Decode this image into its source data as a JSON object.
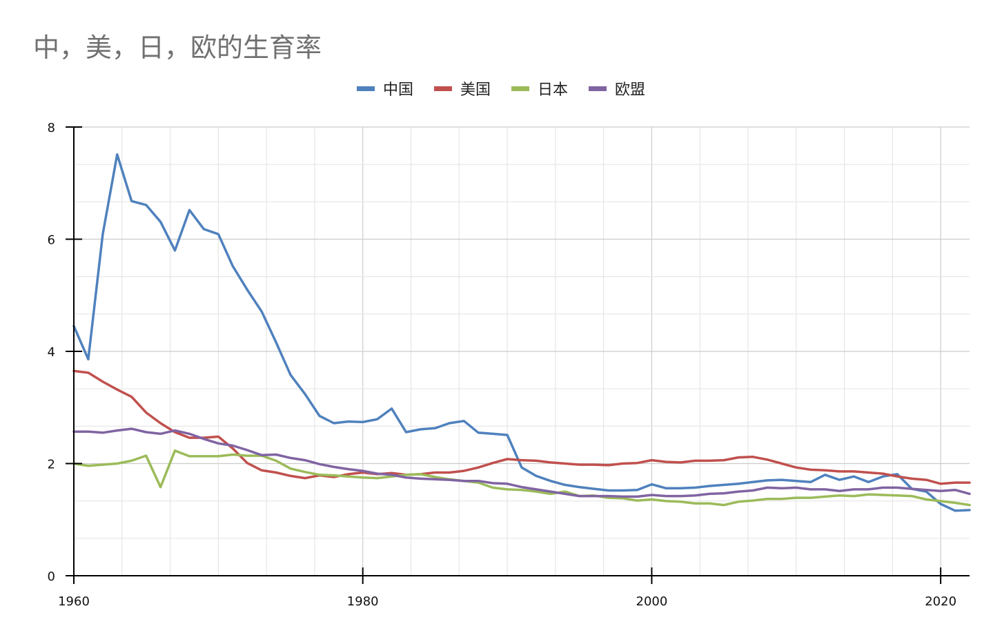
{
  "chart_data": {
    "type": "line",
    "title": "中，美，日，欧的生育率",
    "xlabel": "",
    "ylabel": "",
    "xlim": [
      1960,
      2022
    ],
    "ylim": [
      0,
      8
    ],
    "x_ticks": [
      1960,
      1980,
      2000,
      2020
    ],
    "y_ticks": [
      0,
      2,
      4,
      6,
      8
    ],
    "grid": true,
    "legend_position": "top",
    "x": [
      1960,
      1961,
      1962,
      1963,
      1964,
      1965,
      1966,
      1967,
      1968,
      1969,
      1970,
      1971,
      1972,
      1973,
      1974,
      1975,
      1976,
      1977,
      1978,
      1979,
      1980,
      1981,
      1982,
      1983,
      1984,
      1985,
      1986,
      1987,
      1988,
      1989,
      1990,
      1991,
      1992,
      1993,
      1994,
      1995,
      1996,
      1997,
      1998,
      1999,
      2000,
      2001,
      2002,
      2003,
      2004,
      2005,
      2006,
      2007,
      2008,
      2009,
      2010,
      2011,
      2012,
      2013,
      2014,
      2015,
      2016,
      2017,
      2018,
      2019,
      2020,
      2021,
      2022
    ],
    "series": [
      {
        "name": "中国",
        "color": "#4f81bd",
        "values": [
          4.45,
          3.86,
          6.09,
          7.51,
          6.68,
          6.61,
          6.31,
          5.8,
          6.52,
          6.18,
          6.09,
          5.52,
          5.1,
          4.71,
          4.16,
          3.58,
          3.24,
          2.85,
          2.72,
          2.75,
          2.74,
          2.79,
          2.98,
          2.56,
          2.61,
          2.63,
          2.72,
          2.76,
          2.55,
          2.53,
          2.51,
          1.93,
          1.78,
          1.69,
          1.62,
          1.58,
          1.55,
          1.52,
          1.52,
          1.53,
          1.63,
          1.56,
          1.56,
          1.57,
          1.6,
          1.62,
          1.64,
          1.67,
          1.7,
          1.71,
          1.69,
          1.67,
          1.8,
          1.71,
          1.77,
          1.67,
          1.77,
          1.81,
          1.55,
          1.5,
          1.28,
          1.16,
          1.17
        ]
      },
      {
        "name": "美国",
        "color": "#c0504d",
        "values": [
          3.65,
          3.62,
          3.46,
          3.32,
          3.19,
          2.91,
          2.72,
          2.56,
          2.46,
          2.46,
          2.48,
          2.27,
          2.01,
          1.88,
          1.84,
          1.78,
          1.74,
          1.79,
          1.76,
          1.81,
          1.84,
          1.81,
          1.83,
          1.8,
          1.81,
          1.84,
          1.84,
          1.87,
          1.93,
          2.01,
          2.08,
          2.06,
          2.05,
          2.02,
          2.0,
          1.98,
          1.98,
          1.97,
          2.0,
          2.01,
          2.06,
          2.03,
          2.02,
          2.05,
          2.05,
          2.06,
          2.11,
          2.12,
          2.07,
          2.0,
          1.93,
          1.89,
          1.88,
          1.86,
          1.86,
          1.84,
          1.82,
          1.77,
          1.73,
          1.71,
          1.64,
          1.66,
          1.66
        ]
      },
      {
        "name": "日本",
        "color": "#9bbb59",
        "values": [
          2.0,
          1.96,
          1.98,
          2.0,
          2.05,
          2.14,
          1.58,
          2.23,
          2.13,
          2.13,
          2.13,
          2.16,
          2.14,
          2.14,
          2.05,
          1.91,
          1.85,
          1.8,
          1.79,
          1.77,
          1.75,
          1.74,
          1.77,
          1.8,
          1.81,
          1.76,
          1.72,
          1.69,
          1.66,
          1.57,
          1.54,
          1.53,
          1.5,
          1.46,
          1.5,
          1.42,
          1.43,
          1.39,
          1.38,
          1.34,
          1.36,
          1.33,
          1.32,
          1.29,
          1.29,
          1.26,
          1.32,
          1.34,
          1.37,
          1.37,
          1.39,
          1.39,
          1.41,
          1.43,
          1.42,
          1.45,
          1.44,
          1.43,
          1.42,
          1.36,
          1.33,
          1.3,
          1.26
        ]
      },
      {
        "name": "欧盟",
        "color": "#8064a2",
        "values": [
          2.57,
          2.57,
          2.55,
          2.59,
          2.62,
          2.56,
          2.53,
          2.59,
          2.53,
          2.44,
          2.36,
          2.32,
          2.24,
          2.15,
          2.16,
          2.1,
          2.06,
          1.99,
          1.94,
          1.9,
          1.87,
          1.82,
          1.8,
          1.75,
          1.73,
          1.72,
          1.71,
          1.69,
          1.69,
          1.65,
          1.64,
          1.58,
          1.54,
          1.5,
          1.46,
          1.42,
          1.42,
          1.42,
          1.41,
          1.41,
          1.44,
          1.42,
          1.42,
          1.43,
          1.46,
          1.47,
          1.5,
          1.52,
          1.57,
          1.56,
          1.57,
          1.54,
          1.54,
          1.51,
          1.54,
          1.54,
          1.57,
          1.57,
          1.55,
          1.53,
          1.51,
          1.53,
          1.46
        ]
      }
    ]
  }
}
